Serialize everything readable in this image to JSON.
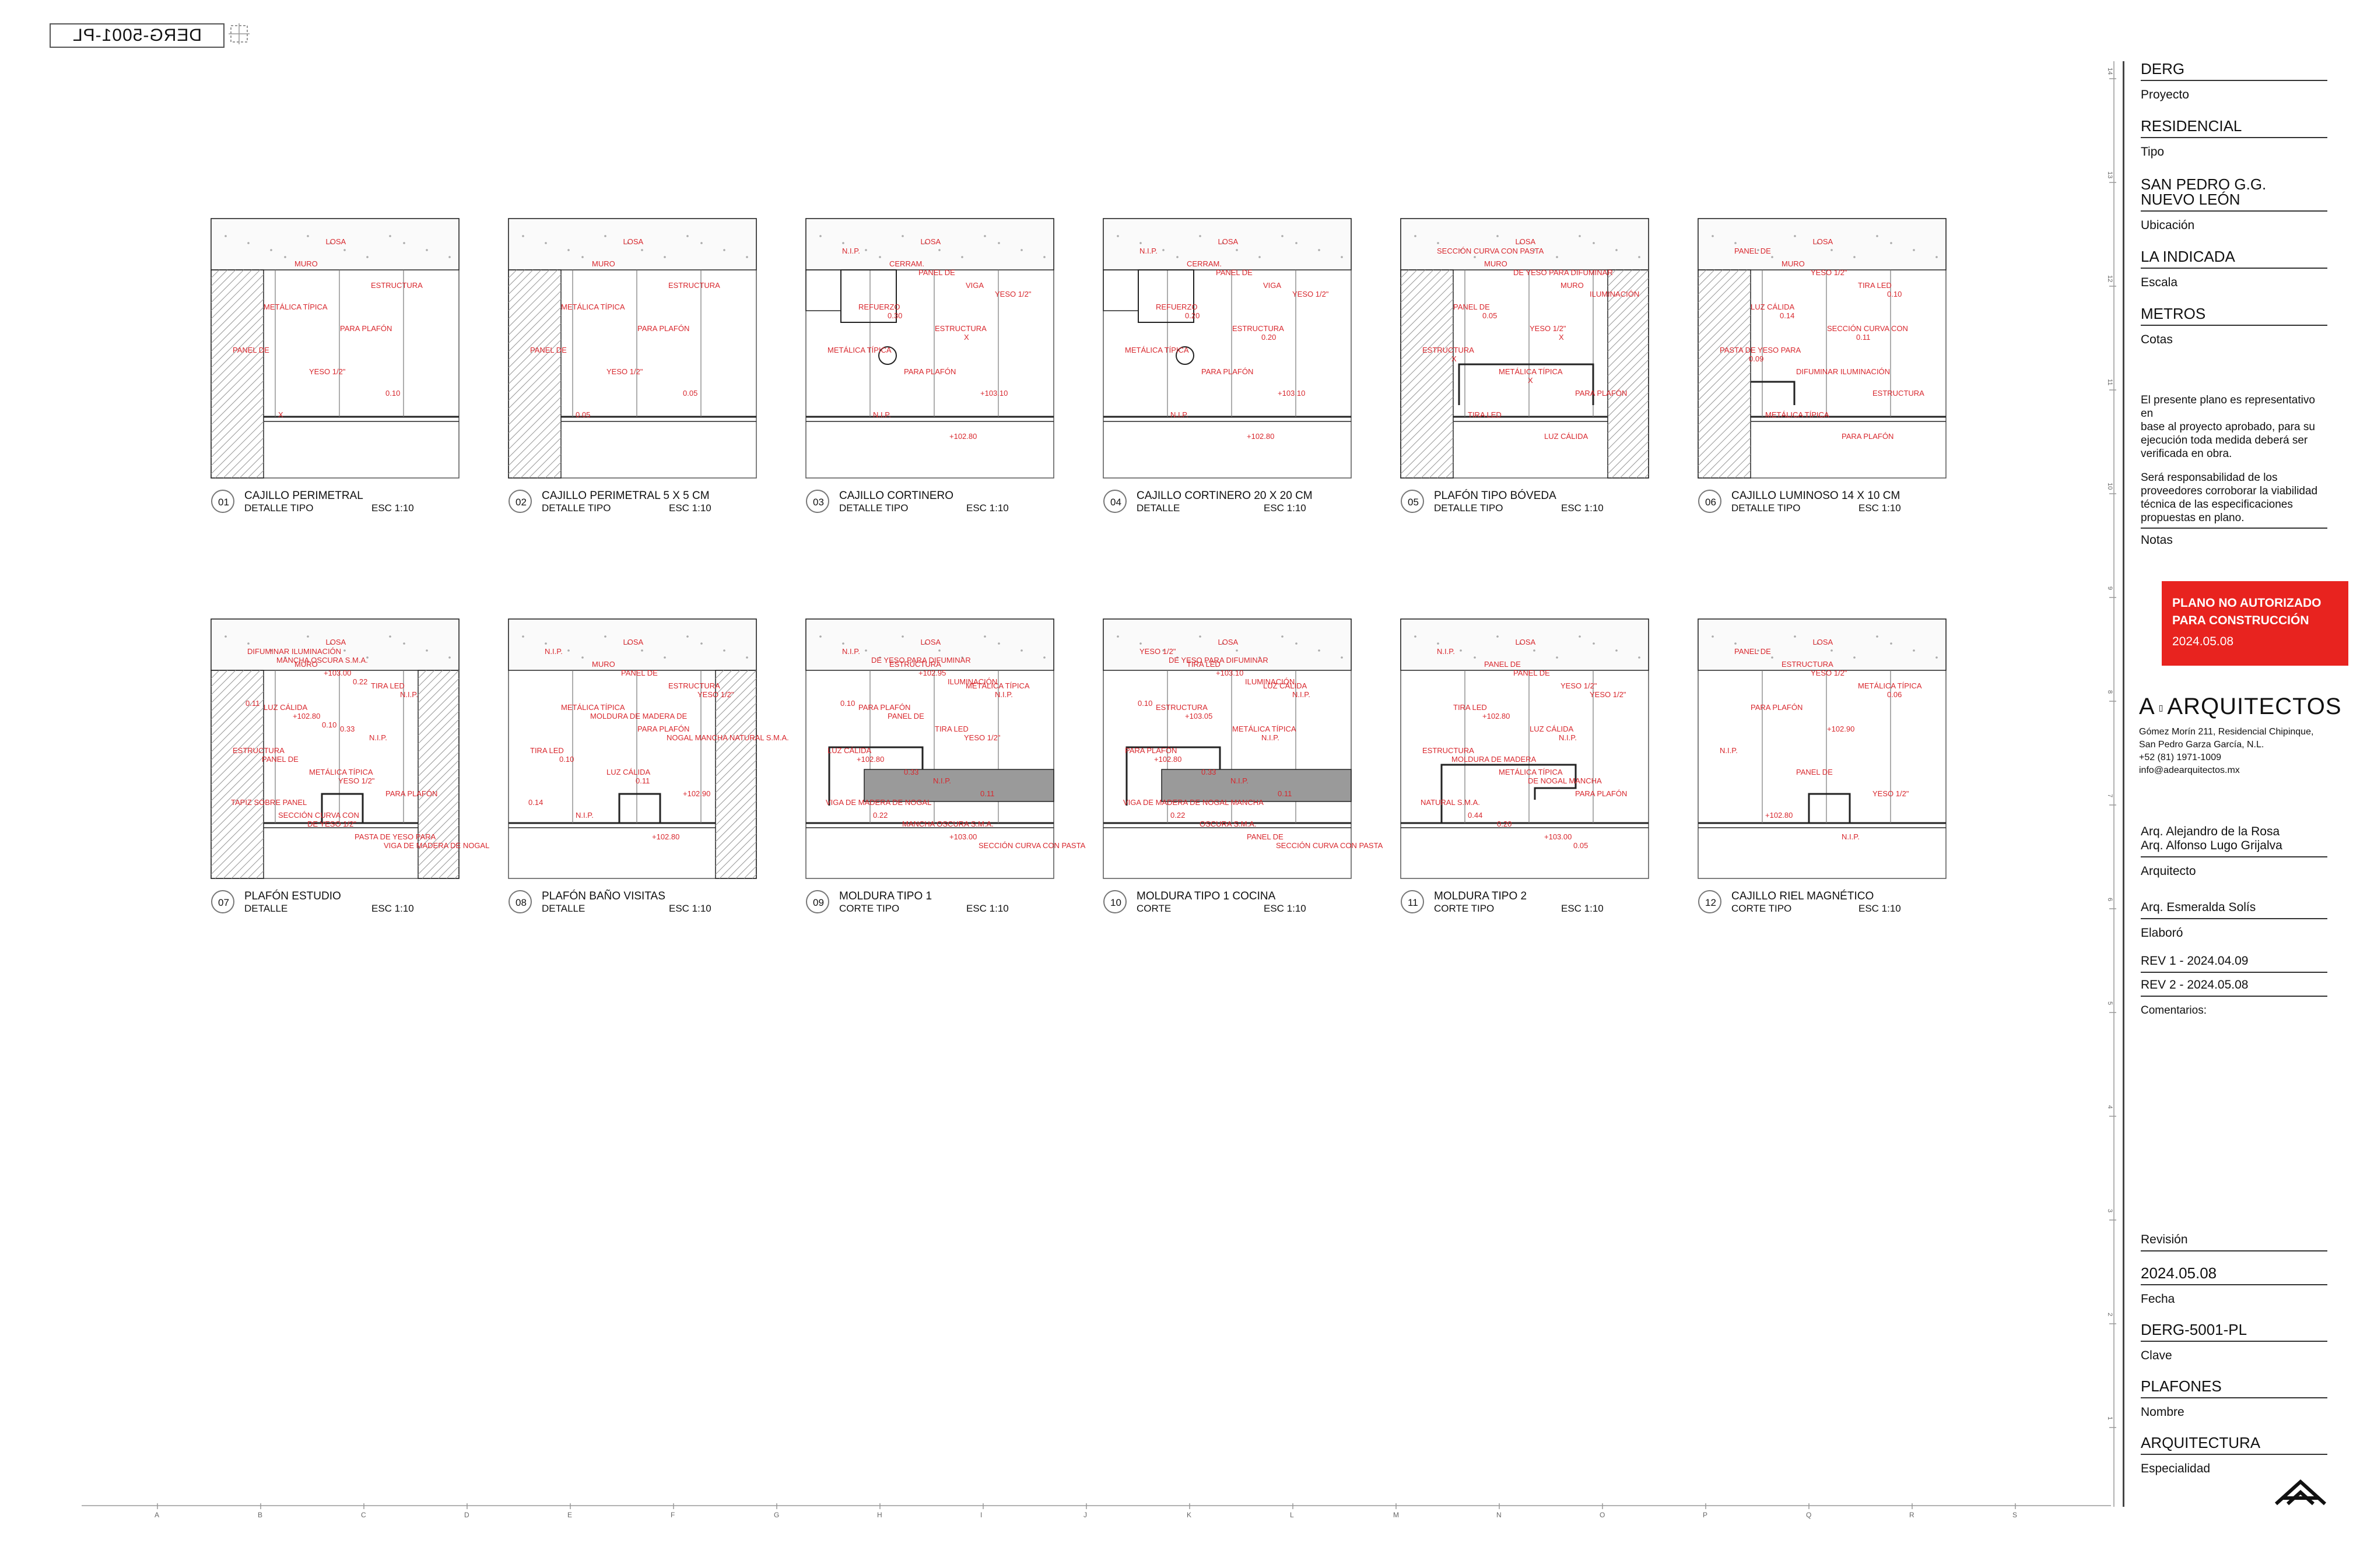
{
  "stamp": {
    "code": "DERG-5001-PL"
  },
  "details_row1": [
    {
      "num": "01",
      "title": "CAJILLO PERIMETRAL",
      "subtitle": "DETALLE TIPO",
      "scale": "ESC 1:10",
      "labels": [
        "LOSA",
        "MURO",
        "ESTRUCTURA",
        "METÁLICA TÍPICA",
        "PARA PLAFÓN",
        "PANEL DE",
        "YESO 1/2\"",
        "0.10",
        "X"
      ]
    },
    {
      "num": "02",
      "title": "CAJILLO PERIMETRAL 5 X 5 CM",
      "subtitle": "DETALLE TIPO",
      "scale": "ESC 1:10",
      "labels": [
        "LOSA",
        "MURO",
        "ESTRUCTURA",
        "METÁLICA TÍPICA",
        "PARA PLAFÓN",
        "PANEL DE",
        "YESO 1/2\"",
        "0.05",
        "0.05"
      ]
    },
    {
      "num": "03",
      "title": "CAJILLO CORTINERO",
      "subtitle": "DETALLE TIPO",
      "scale": "ESC 1:10",
      "labels": [
        "LOSA",
        "CERRAM.",
        "VIGA",
        "REFUERZO",
        "ESTRUCTURA",
        "METÁLICA TÍPICA",
        "PARA PLAFÓN",
        "+103.10",
        "N.I.P.",
        "+102.80",
        "N.I.P.",
        "PANEL DE",
        "YESO 1/2\"",
        "0.30",
        "X"
      ]
    },
    {
      "num": "04",
      "title": "CAJILLO CORTINERO 20 X 20 CM",
      "subtitle": "DETALLE",
      "scale": "ESC 1:10",
      "labels": [
        "LOSA",
        "CERRAM.",
        "VIGA",
        "REFUERZO",
        "ESTRUCTURA",
        "METÁLICA TÍPICA",
        "PARA PLAFÓN",
        "+103.10",
        "N.I.P.",
        "+102.80",
        "N.I.P.",
        "PANEL DE",
        "YESO 1/2\"",
        "0.20",
        "0.20"
      ]
    },
    {
      "num": "05",
      "title": "PLAFÓN TIPO BÓVEDA",
      "subtitle": "DETALLE TIPO",
      "scale": "ESC 1:10",
      "labels": [
        "LOSA",
        "MURO",
        "MURO",
        "PANEL DE",
        "YESO 1/2\"",
        "ESTRUCTURA",
        "METÁLICA TÍPICA",
        "PARA PLAFÓN",
        "TIRA LED",
        "LUZ CÁLIDA",
        "SECCIÓN CURVA CON PASTA",
        "DE YESO PARA DIFUMINAR",
        "ILUMINACIÓN",
        "0.05",
        "X",
        "X",
        "X"
      ]
    },
    {
      "num": "06",
      "title": "CAJILLO LUMINOSO 14 X 10 CM",
      "subtitle": "DETALLE TIPO",
      "scale": "ESC 1:10",
      "labels": [
        "LOSA",
        "MURO",
        "TIRA LED",
        "LUZ CÁLIDA",
        "SECCIÓN CURVA CON",
        "PASTA DE YESO PARA",
        "DIFUMINAR ILUMINACIÓN",
        "ESTRUCTURA",
        "METÁLICA TÍPICA",
        "PARA PLAFÓN",
        "PANEL DE",
        "YESO 1/2\"",
        "0.10",
        "0.14",
        "0.11",
        "0.09"
      ]
    }
  ],
  "details_row2": [
    {
      "num": "07",
      "title": "PLAFÓN ESTUDIO",
      "subtitle": "DETALLE",
      "scale": "ESC 1:10",
      "labels": [
        "LOSA",
        "MURO",
        "TIRA LED",
        "LUZ CÁLIDA",
        "0.33",
        "ESTRUCTURA",
        "METÁLICA TÍPICA",
        "PARA PLAFÓN",
        "SECCIÓN CURVA CON",
        "PASTA DE YESO PARA",
        "DIFUMINAR ILUMINACIÓN",
        "+103.00",
        "N.I.P.",
        "+102.80",
        "N.I.P.",
        "PANEL DE",
        "YESO 1/2\"",
        "TAPIZ SOBRE PANEL",
        "DE YESO 1/2\"",
        "VIGA DE MADERA DE NOGAL",
        "MANCHA OSCURA S.M.A.",
        "0.22",
        "0.11",
        "0.10"
      ]
    },
    {
      "num": "08",
      "title": "PLAFÓN BAÑO VISITAS",
      "subtitle": "DETALLE",
      "scale": "ESC 1:10",
      "labels": [
        "LOSA",
        "MURO",
        "ESTRUCTURA",
        "METÁLICA TÍPICA",
        "PARA PLAFÓN",
        "TIRA LED",
        "LUZ CÁLIDA",
        "+102.90",
        "N.I.P.",
        "+102.80",
        "N.I.P.",
        "PANEL DE",
        "YESO 1/2\"",
        "MOLDURA DE MADERA DE",
        "NOGAL MANCHA NATURAL S.M.A.",
        "0.10",
        "0.11",
        "0.14"
      ]
    },
    {
      "num": "09",
      "title": "MOLDURA TIPO 1",
      "subtitle": "CORTE TIPO",
      "scale": "ESC 1:10",
      "labels": [
        "LOSA",
        "ESTRUCTURA",
        "METÁLICA TÍPICA",
        "PARA PLAFÓN",
        "TIRA LED",
        "LUZ CÁLIDA",
        "0.33",
        "0.11",
        "0.22",
        "+103.00",
        "N.I.P.",
        "+102.95",
        "N.I.P.",
        "PANEL DE",
        "YESO 1/2\"",
        "+102.80",
        "N.I.P.",
        "VIGA DE MADERA DE NOGAL",
        "MANCHA OSCURA S.M.A.",
        "SECCIÓN CURVA CON PASTA",
        "DE YESO PARA DIFUMINAR",
        "ILUMINACIÓN",
        "0.10"
      ]
    },
    {
      "num": "10",
      "title": "MOLDURA TIPO 1 COCINA",
      "subtitle": "CORTE",
      "scale": "ESC 1:10",
      "labels": [
        "LOSA",
        "TIRA LED",
        "LUZ CÁLIDA",
        "ESTRUCTURA",
        "METÁLICA TÍPICA",
        "PARA PLAFÓN",
        "0.33",
        "0.11",
        "0.22",
        "PANEL DE",
        "YESO 1/2\"",
        "+103.10",
        "N.I.P.",
        "+103.05",
        "N.I.P.",
        "+102.80",
        "N.I.P.",
        "VIGA DE MADERA DE NOGAL MANCHA",
        "OSCURA S.M.A.",
        "SECCIÓN CURVA CON PASTA",
        "DE YESO PARA DIFUMINAR",
        "ILUMINACIÓN",
        "0.10"
      ]
    },
    {
      "num": "11",
      "title": "MOLDURA TIPO 2",
      "subtitle": "CORTE TIPO",
      "scale": "ESC 1:10",
      "labels": [
        "LOSA",
        "PANEL DE",
        "YESO 1/2\"",
        "TIRA LED",
        "LUZ CÁLIDA",
        "ESTRUCTURA",
        "METÁLICA TÍPICA",
        "PARA PLAFÓN",
        "0.44",
        "+103.00",
        "N.I.P.",
        "PANEL DE",
        "YESO 1/2\"",
        "+102.80",
        "N.I.P.",
        "MOLDURA DE MADERA",
        "DE NOGAL MANCHA",
        "NATURAL S.M.A.",
        "0.20",
        "0.05"
      ]
    },
    {
      "num": "12",
      "title": "CAJILLO RIEL MAGNÉTICO",
      "subtitle": "CORTE TIPO",
      "scale": "ESC 1:10",
      "labels": [
        "LOSA",
        "ESTRUCTURA",
        "METÁLICA TÍPICA",
        "PARA PLAFÓN",
        "+102.90",
        "N.I.P.",
        "PANEL DE",
        "YESO 1/2\"",
        "+102.80",
        "N.I.P.",
        "PANEL DE",
        "YESO 1/2\"",
        "0.06"
      ]
    }
  ],
  "title_block": {
    "proyecto": {
      "value": "DERG",
      "label": "Proyecto"
    },
    "tipo": {
      "value": "RESIDENCIAL",
      "label": "Tipo"
    },
    "ubicacion": {
      "value1": "SAN PEDRO G.G.",
      "value2": "NUEVO LEÓN",
      "label": "Ubicación"
    },
    "escala": {
      "value": "LA INDICADA",
      "label": "Escala"
    },
    "cotas": {
      "value": "METROS",
      "label": "Cotas"
    },
    "notes": [
      "El presente plano es representativo en",
      "base al proyecto aprobado, para su",
      "ejecución toda medida deberá ser",
      "verificada en obra.",
      "",
      "Será responsabilidad de los",
      "proveedores corroborar la viabilidad",
      "técnica de las especificaciones",
      "propuestas en plano."
    ],
    "notes_label": "Notas",
    "warning": {
      "line1": "PLANO NO AUTORIZADO",
      "line2": "PARA CONSTRUCCIÓN",
      "date": "2024.05.08"
    },
    "firm": {
      "name_prefix": "A",
      "name_suffix": "ARQUITECTOS",
      "address1": "Gómez Morín 211, Residencial Chipinque,",
      "address2": "San Pedro Garza García, N.L.",
      "phone": "+52 (81) 1971-1009",
      "email": "info@adearquitectos.mx"
    },
    "arquitecto": {
      "value1": "Arq. Alejandro de la Rosa",
      "value2": "Arq. Alfonso Lugo Grijalva",
      "label": "Arquitecto"
    },
    "elaboro": {
      "value": "Arq. Esmeralda Solís",
      "label": "Elaboró"
    },
    "rev1": "REV 1 - 2024.04.09",
    "rev2": "REV 2 - 2024.05.08",
    "comentarios": "Comentarios:",
    "revision_label": "Revisión",
    "fecha": {
      "value": "2024.05.08",
      "label": "Fecha"
    },
    "clave": {
      "value": "DERG-5001-PL",
      "label": "Clave"
    },
    "nombre": {
      "value": "PLAFONES",
      "label": "Nombre"
    },
    "especialidad": {
      "value": "ARQUITECTURA",
      "label": "Especialidad"
    }
  },
  "grid_letters": [
    "A",
    "B",
    "C",
    "D",
    "E",
    "F",
    "G",
    "H",
    "I",
    "J",
    "K",
    "L",
    "M",
    "N",
    "O",
    "P",
    "Q",
    "R",
    "S"
  ],
  "ruler_numbers": [
    "14",
    "13",
    "12",
    "11",
    "10",
    "9",
    "8",
    "7",
    "6",
    "5",
    "4",
    "3",
    "2",
    "1"
  ],
  "colors": {
    "annotation": "#d8272d",
    "line": "#222222",
    "warning_bg": "#e8231f",
    "fill_gray": "#9a9a9a"
  }
}
